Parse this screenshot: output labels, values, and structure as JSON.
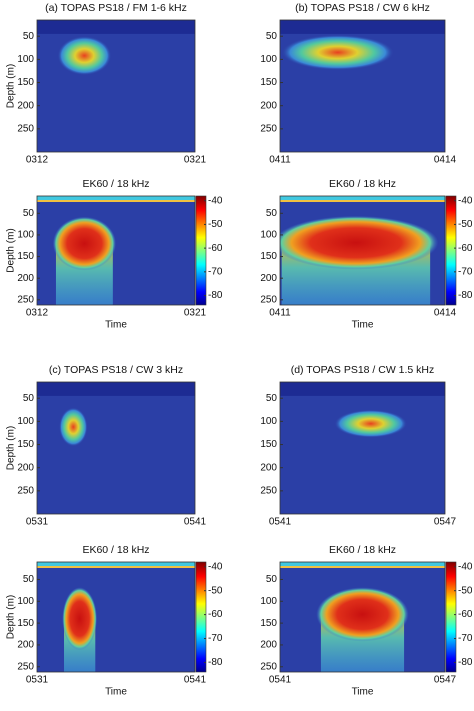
{
  "chart_data": [
    {
      "type": "heatmap",
      "title": "(a)  TOPAS PS18 / FM 1-6 kHz",
      "ylabel": "Depth (m)",
      "categories": [
        "0312",
        "0321"
      ],
      "ylim": [
        15,
        300
      ],
      "yticks": [
        50,
        100,
        150,
        200,
        250
      ],
      "colormap": "jet"
    },
    {
      "type": "heatmap",
      "title": "(b) TOPAS PS18 / CW 6 kHz",
      "categories": [
        "0411",
        "0414"
      ],
      "ylim": [
        15,
        300
      ],
      "yticks": [
        50,
        100,
        150,
        200,
        250
      ],
      "colormap": "jet"
    },
    {
      "type": "heatmap",
      "title": "EK60 / 18 kHz",
      "ylabel": "Depth (m)",
      "xlabel": "Time",
      "categories": [
        "0312",
        "0321"
      ],
      "ylim": [
        10,
        262
      ],
      "yticks": [
        50,
        100,
        150,
        200,
        250
      ],
      "colormap": "jet",
      "clim": [
        -84,
        -38
      ],
      "cticks": [
        -40,
        -50,
        -60,
        -70,
        -80
      ]
    },
    {
      "type": "heatmap",
      "title": "EK60 / 18 kHz",
      "xlabel": "Time",
      "categories": [
        "0411",
        "0414"
      ],
      "ylim": [
        10,
        262
      ],
      "yticks": [
        50,
        100,
        150,
        200,
        250
      ],
      "colormap": "jet",
      "clim": [
        -84,
        -38
      ],
      "cticks": [
        -40,
        -50,
        -60,
        -70,
        -80
      ]
    },
    {
      "type": "heatmap",
      "title": "(c) TOPAS PS18 / CW 3 kHz",
      "ylabel": "Depth (m)",
      "categories": [
        "0531",
        "0541"
      ],
      "ylim": [
        15,
        300
      ],
      "yticks": [
        50,
        100,
        150,
        200,
        250
      ],
      "colormap": "jet"
    },
    {
      "type": "heatmap",
      "title": "(d) TOPAS PS18 / CW 1.5 kHz",
      "categories": [
        "0541",
        "0547"
      ],
      "ylim": [
        15,
        300
      ],
      "yticks": [
        50,
        100,
        150,
        200,
        250
      ],
      "colormap": "jet"
    },
    {
      "type": "heatmap",
      "title": "EK60 / 18 kHz",
      "ylabel": "Depth (m)",
      "xlabel": "Time",
      "categories": [
        "0531",
        "0541"
      ],
      "ylim": [
        10,
        262
      ],
      "yticks": [
        50,
        100,
        150,
        200,
        250
      ],
      "colormap": "jet",
      "clim": [
        -84,
        -38
      ],
      "cticks": [
        -40,
        -50,
        -60,
        -70,
        -80
      ]
    },
    {
      "type": "heatmap",
      "title": "EK60 / 18 kHz",
      "xlabel": "Time",
      "categories": [
        "0541",
        "0547"
      ],
      "ylim": [
        10,
        262
      ],
      "yticks": [
        50,
        100,
        150,
        200,
        250
      ],
      "colormap": "jet",
      "clim": [
        -84,
        -38
      ],
      "cticks": [
        -40,
        -50,
        -60,
        -70,
        -80
      ]
    }
  ]
}
